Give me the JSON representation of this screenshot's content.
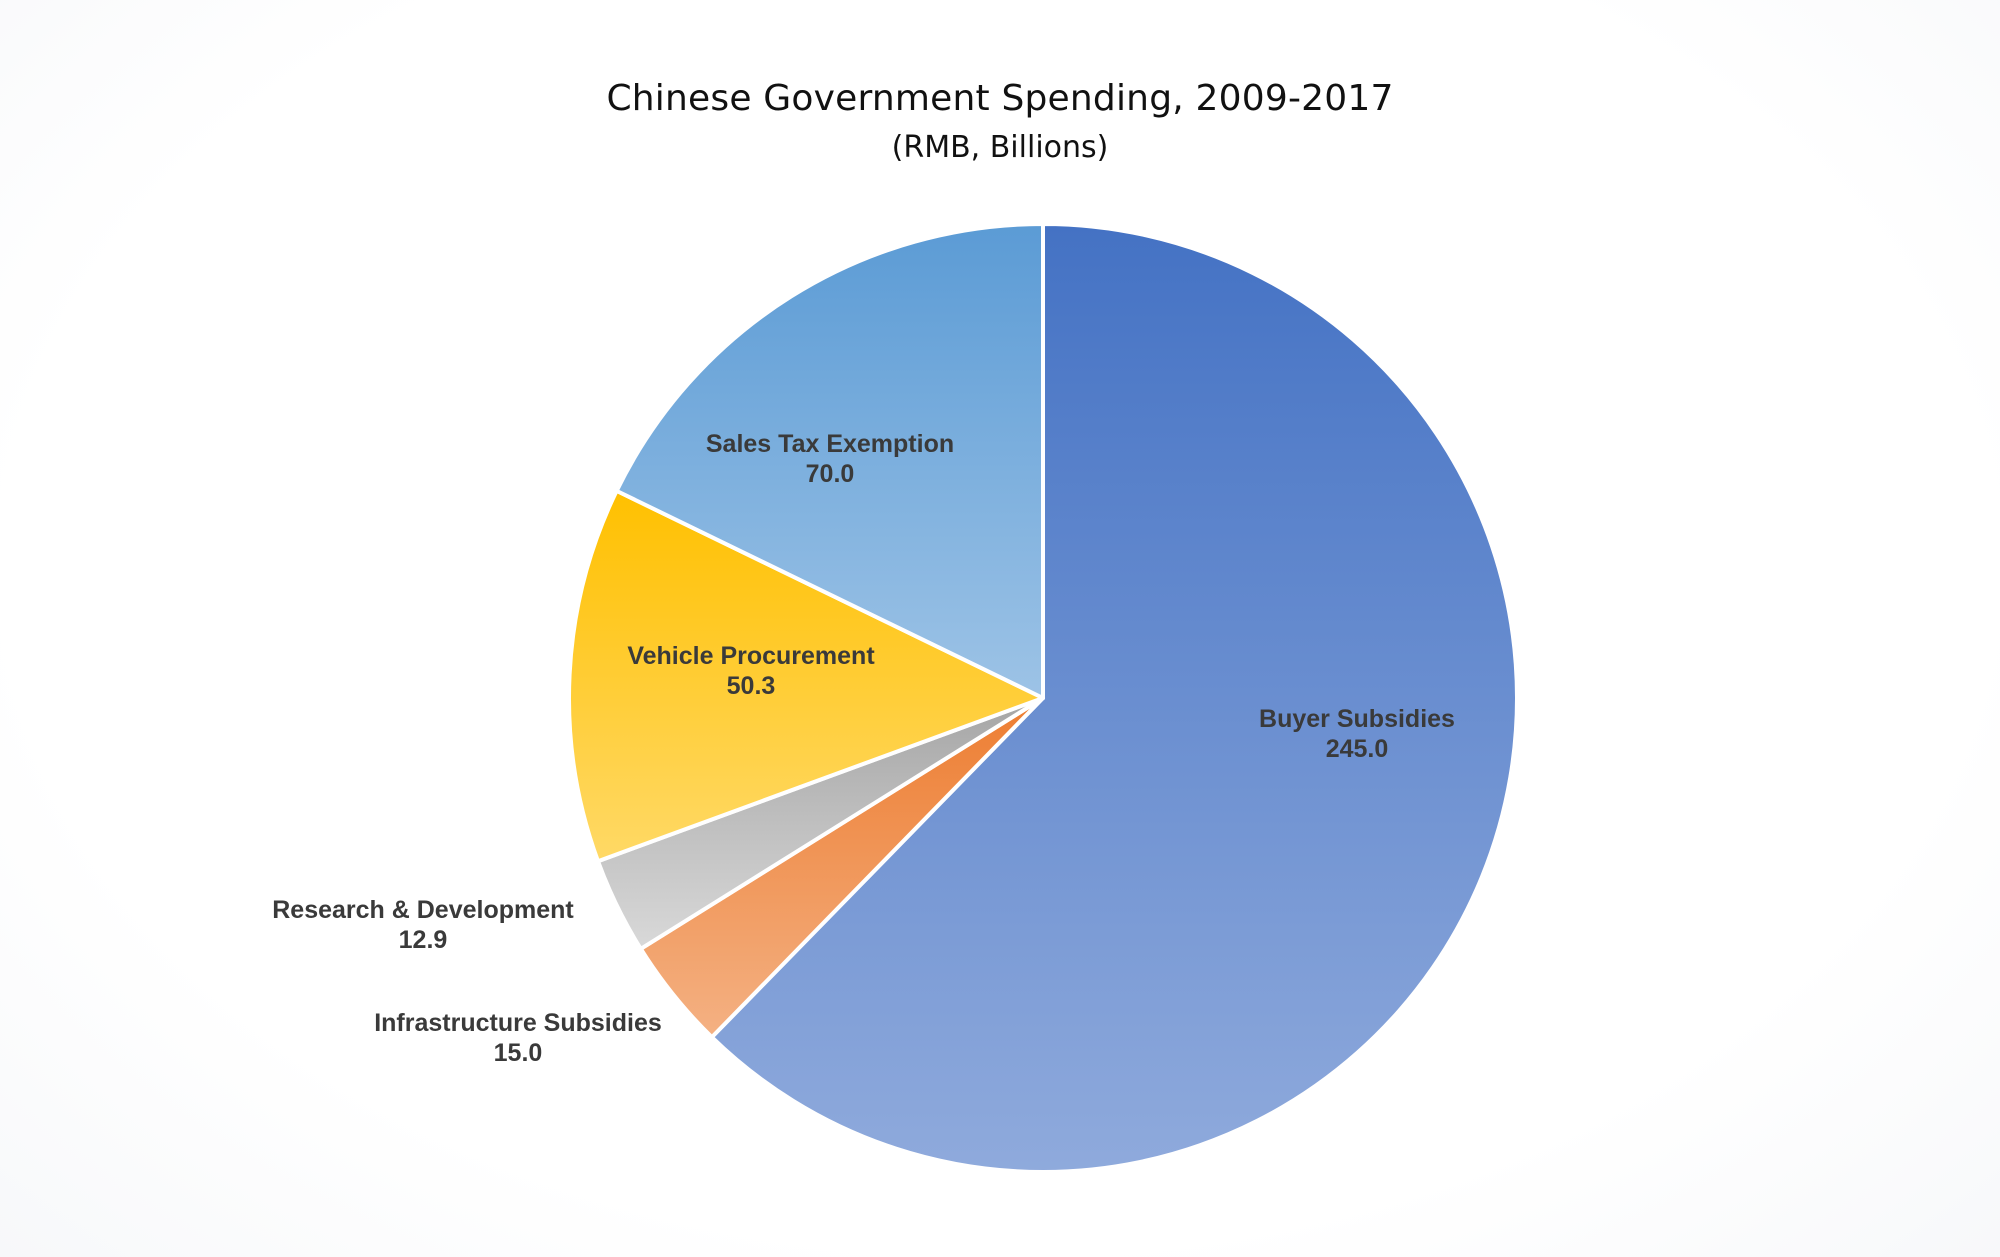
{
  "chart_data": {
    "type": "pie",
    "title": "Chinese Government Spending, 2009-2017",
    "subtitle": "(RMB, Billions)",
    "slices": [
      {
        "label": "Buyer Subsidies",
        "value": 245.0,
        "value_text": "245.0",
        "color_top": "#4472c4",
        "color_bottom": "#8faadc"
      },
      {
        "label": "Infrastructure Subsidies",
        "value": 15.0,
        "value_text": "15.0",
        "color_top": "#ed7d31",
        "color_bottom": "#f4b183"
      },
      {
        "label": "Research & Development",
        "value": 12.9,
        "value_text": "12.9",
        "color_top": "#a5a5a5",
        "color_bottom": "#d9d9d9"
      },
      {
        "label": "Vehicle Procurement",
        "value": 50.3,
        "value_text": "50.3",
        "color_top": "#ffc000",
        "color_bottom": "#ffd966"
      },
      {
        "label": "Sales Tax Exemption",
        "value": 70.0,
        "value_text": "70.0",
        "color_top": "#5b9bd5",
        "color_bottom": "#9dc3e6"
      }
    ],
    "start_angle_deg": 0,
    "direction": "clockwise",
    "legend": "none"
  }
}
